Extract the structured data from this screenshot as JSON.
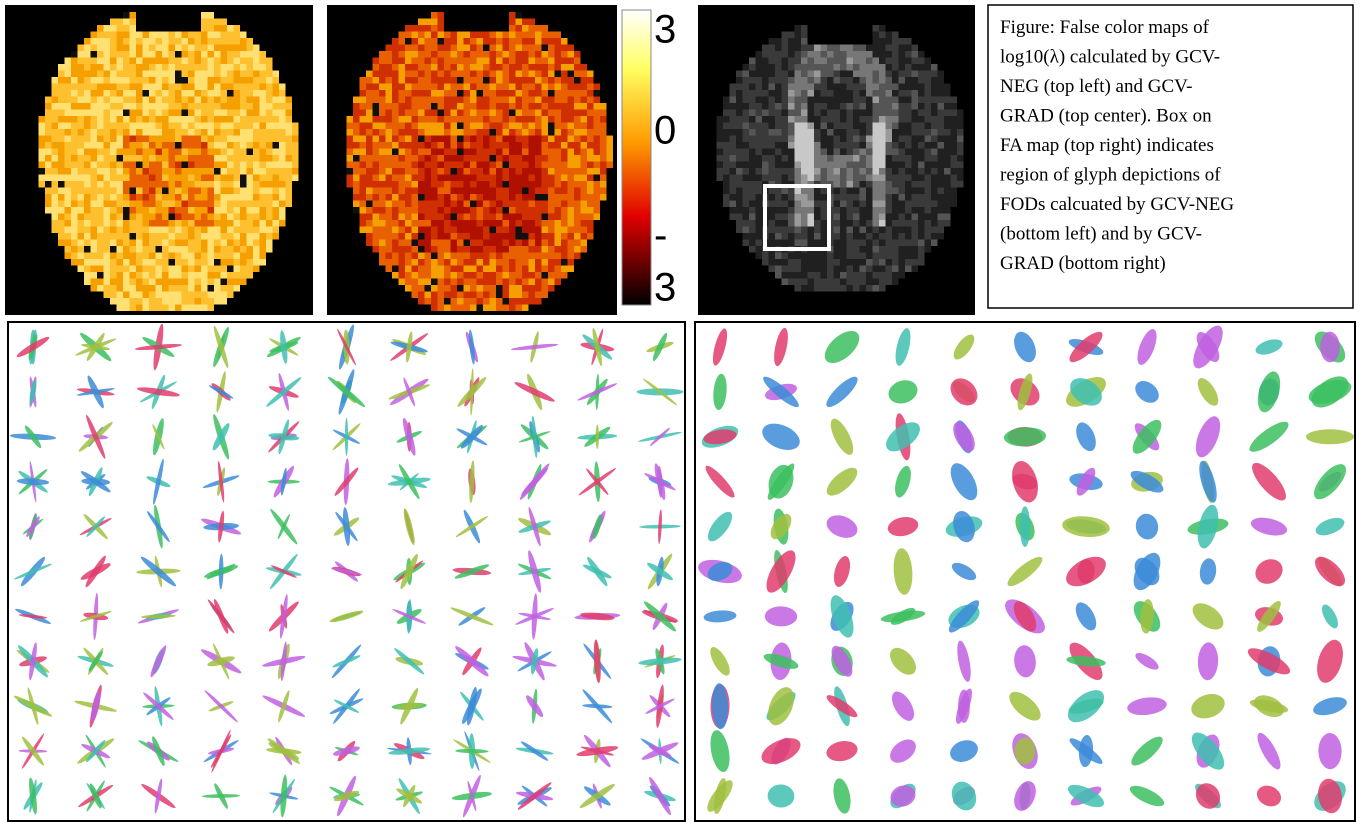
{
  "colorbar": {
    "labels": [
      "3",
      "0",
      "-",
      "3"
    ]
  },
  "caption": {
    "lines": [
      "Figure: False color maps of",
      "log10(λ) calculated by GCV-",
      "NEG (top left) and GCV-",
      "GRAD (top center). Box on",
      "FA map (top right) indicates",
      "region of glyph depictions of",
      "FODs calcuated by GCV-NEG",
      "(bottom left) and by GCV-",
      "GRAD (bottom right)"
    ]
  }
}
